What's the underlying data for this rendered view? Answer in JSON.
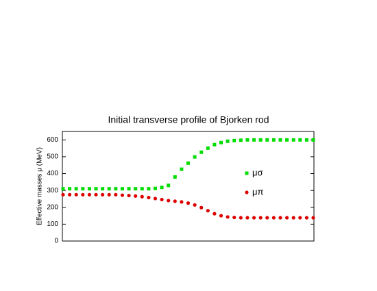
{
  "chart_data": {
    "type": "scatter",
    "title": "Initial transverse profile of Bjorken rod",
    "y_label": "Effective masses μ (MeV)",
    "categories": [
      null,
      null,
      null,
      null,
      null,
      null,
      null,
      null,
      null,
      null,
      null,
      null,
      null,
      null,
      null,
      null,
      null,
      null,
      null,
      null,
      null,
      null,
      null,
      null,
      null,
      null,
      null,
      null,
      null,
      null,
      null,
      null,
      null,
      null,
      null,
      null,
      null,
      null,
      null
    ],
    "series": [
      {
        "name": "μσ",
        "color": "#00dd00",
        "marker": "square",
        "values": [
          310,
          310,
          310,
          310,
          310,
          310,
          310,
          310,
          310,
          310,
          310,
          310,
          310,
          310,
          312,
          318,
          330,
          380,
          426,
          462,
          499,
          527,
          551,
          572,
          584,
          592,
          596,
          598,
          600,
          600,
          600,
          600,
          600,
          600,
          600,
          600,
          600,
          600,
          600
        ]
      },
      {
        "name": "μπ",
        "color": "#dd0000",
        "marker": "circle",
        "values": [
          275,
          275,
          275,
          275,
          275,
          275,
          275,
          275,
          275,
          272,
          270,
          267,
          263,
          258,
          252,
          246,
          240,
          236,
          232,
          225,
          214,
          198,
          180,
          162,
          150,
          143,
          140,
          138,
          138,
          138,
          138,
          138,
          138,
          138,
          138,
          138,
          138,
          138,
          138
        ]
      }
    ],
    "ylim": [
      0,
      650
    ],
    "yticks": [
      0,
      100,
      200,
      300,
      400,
      500,
      600
    ]
  }
}
